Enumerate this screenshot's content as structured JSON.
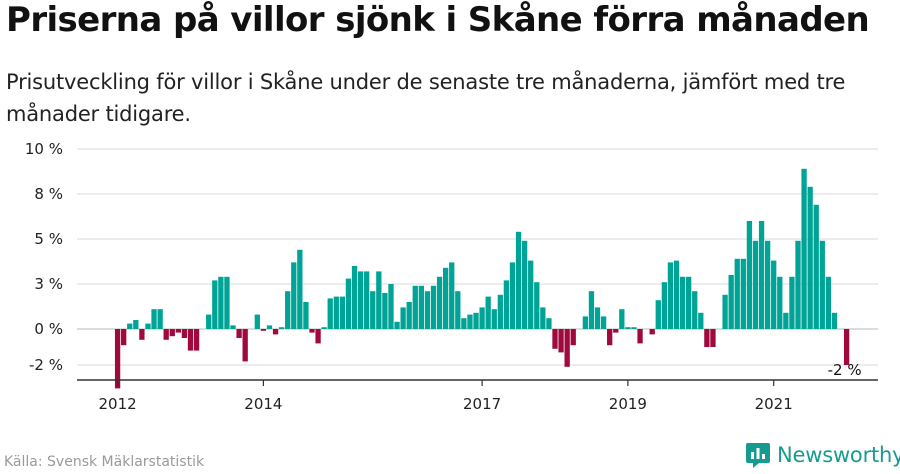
{
  "header": {
    "title": "Priserna på villor sjönk i Skåne förra månaden",
    "subtitle": "Prisutveckling för villor i Skåne under de senaste tre månaderna, jämfört med tre månader tidigare."
  },
  "footer": {
    "source": "Källa: Svensk Mäklarstatistik",
    "brand": "Newsworthy"
  },
  "colors": {
    "positive": "#00a497",
    "negative": "#a0093e",
    "grid": "#d9d9d9",
    "axis": "#333333",
    "brand": "#169c8e"
  },
  "chart_data": {
    "type": "bar",
    "y_unit": "%",
    "ylim": [
      -3.5,
      10.5
    ],
    "y_ticks": [
      {
        "value": -2,
        "label": "-2 %"
      },
      {
        "value": 0,
        "label": "0 %"
      },
      {
        "value": 2.5,
        "label": "3 %"
      },
      {
        "value": 5,
        "label": "5 %"
      },
      {
        "value": 7.5,
        "label": "8 %"
      },
      {
        "value": 10,
        "label": "10 %"
      }
    ],
    "x_ticks": [
      {
        "index": 0,
        "label": "2012"
      },
      {
        "index": 24,
        "label": "2014"
      },
      {
        "index": 60,
        "label": "2017"
      },
      {
        "index": 84,
        "label": "2019"
      },
      {
        "index": 108,
        "label": "2021"
      }
    ],
    "grid": true,
    "annotation": {
      "index": 120,
      "label": "-2 %"
    },
    "start": "2012-01",
    "frequency": "monthly",
    "values": [
      -3.3,
      -0.9,
      0.3,
      0.5,
      -0.6,
      0.3,
      1.1,
      1.1,
      -0.6,
      -0.4,
      -0.2,
      -0.5,
      -1.2,
      -1.2,
      0.0,
      0.8,
      2.7,
      2.9,
      2.9,
      0.2,
      -0.5,
      -1.8,
      0.0,
      0.8,
      -0.1,
      0.2,
      -0.3,
      0.1,
      2.1,
      3.7,
      4.4,
      1.5,
      -0.2,
      -0.8,
      0.1,
      1.7,
      1.8,
      1.8,
      2.8,
      3.5,
      3.2,
      3.2,
      2.1,
      3.2,
      2.0,
      2.5,
      0.4,
      1.2,
      1.5,
      2.4,
      2.4,
      2.1,
      2.4,
      2.9,
      3.4,
      3.7,
      2.1,
      0.6,
      0.8,
      0.9,
      1.2,
      1.8,
      1.1,
      1.9,
      2.7,
      3.7,
      5.4,
      4.9,
      3.8,
      2.6,
      1.2,
      0.6,
      -1.1,
      -1.3,
      -2.1,
      -0.9,
      0.0,
      0.7,
      2.1,
      1.2,
      0.7,
      -0.9,
      -0.2,
      1.1,
      0.1,
      0.1,
      -0.8,
      0.0,
      -0.3,
      1.6,
      2.6,
      3.7,
      3.8,
      2.9,
      2.9,
      2.1,
      0.9,
      -1.0,
      -1.0,
      0.0,
      1.9,
      3.0,
      3.9,
      3.9,
      6.0,
      4.9,
      6.0,
      4.9,
      3.8,
      2.9,
      0.9,
      2.9,
      4.9,
      8.9,
      7.9,
      6.9,
      4.9,
      2.9,
      0.9,
      0.0,
      -2.0
    ]
  }
}
